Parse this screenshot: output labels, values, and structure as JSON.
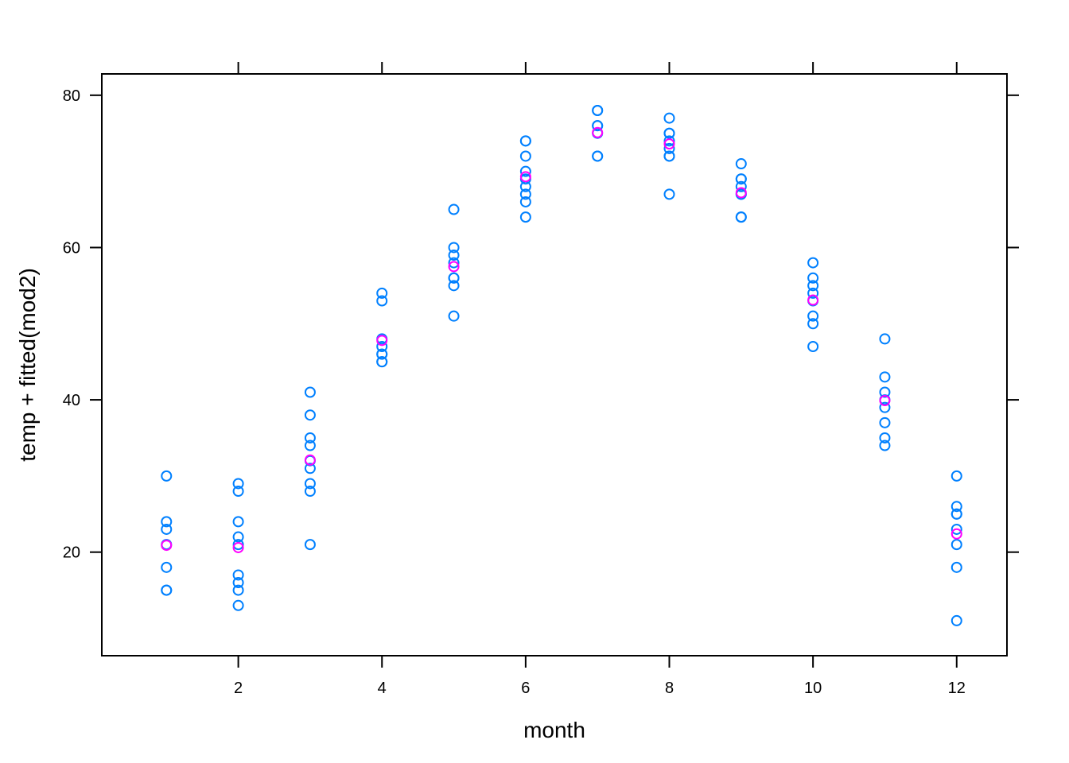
{
  "chart_data": {
    "type": "scatter",
    "title": "",
    "xlabel": "month",
    "ylabel": "temp + fitted(mod2)",
    "xlim": [
      0.1,
      12.7
    ],
    "ylim": [
      6.4,
      82.8
    ],
    "xticks": [
      "2",
      "4",
      "6",
      "8",
      "10",
      "12"
    ],
    "yticks": [
      "20",
      "40",
      "60",
      "80"
    ],
    "grid": false,
    "legend": "none",
    "series": [
      {
        "key": "temp",
        "color": "#0080ff",
        "points": [
          [
            1,
            30
          ],
          [
            1,
            24
          ],
          [
            1,
            23
          ],
          [
            1,
            21
          ],
          [
            1,
            18
          ],
          [
            1,
            15
          ],
          [
            1,
            15
          ],
          [
            2,
            29
          ],
          [
            2,
            28
          ],
          [
            2,
            24
          ],
          [
            2,
            22
          ],
          [
            2,
            21
          ],
          [
            2,
            17
          ],
          [
            2,
            16
          ],
          [
            2,
            15
          ],
          [
            2,
            13
          ],
          [
            3,
            41
          ],
          [
            3,
            38
          ],
          [
            3,
            35
          ],
          [
            3,
            34
          ],
          [
            3,
            32
          ],
          [
            3,
            31
          ],
          [
            3,
            29
          ],
          [
            3,
            28
          ],
          [
            3,
            21
          ],
          [
            4,
            54
          ],
          [
            4,
            53
          ],
          [
            4,
            48
          ],
          [
            4,
            47
          ],
          [
            4,
            46
          ],
          [
            4,
            46
          ],
          [
            4,
            45
          ],
          [
            4,
            45
          ],
          [
            5,
            65
          ],
          [
            5,
            60
          ],
          [
            5,
            59
          ],
          [
            5,
            58
          ],
          [
            5,
            56
          ],
          [
            5,
            56
          ],
          [
            5,
            55
          ],
          [
            5,
            51
          ],
          [
            6,
            74
          ],
          [
            6,
            74
          ],
          [
            6,
            72
          ],
          [
            6,
            70
          ],
          [
            6,
            69
          ],
          [
            6,
            68
          ],
          [
            6,
            67
          ],
          [
            6,
            66
          ],
          [
            6,
            64
          ],
          [
            7,
            78
          ],
          [
            7,
            78
          ],
          [
            7,
            76
          ],
          [
            7,
            76
          ],
          [
            7,
            75
          ],
          [
            7,
            72
          ],
          [
            7,
            72
          ],
          [
            8,
            77
          ],
          [
            8,
            75
          ],
          [
            8,
            75
          ],
          [
            8,
            74
          ],
          [
            8,
            73
          ],
          [
            8,
            72
          ],
          [
            8,
            72
          ],
          [
            8,
            67
          ],
          [
            9,
            71
          ],
          [
            9,
            69
          ],
          [
            9,
            69
          ],
          [
            9,
            68
          ],
          [
            9,
            67
          ],
          [
            9,
            67
          ],
          [
            9,
            64
          ],
          [
            9,
            64
          ],
          [
            10,
            58
          ],
          [
            10,
            56
          ],
          [
            10,
            55
          ],
          [
            10,
            54
          ],
          [
            10,
            53
          ],
          [
            10,
            51
          ],
          [
            10,
            50
          ],
          [
            10,
            47
          ],
          [
            11,
            48
          ],
          [
            11,
            43
          ],
          [
            11,
            41
          ],
          [
            11,
            40
          ],
          [
            11,
            39
          ],
          [
            11,
            37
          ],
          [
            11,
            35
          ],
          [
            11,
            34
          ],
          [
            12,
            30
          ],
          [
            12,
            26
          ],
          [
            12,
            25
          ],
          [
            12,
            25
          ],
          [
            12,
            23
          ],
          [
            12,
            21
          ],
          [
            12,
            18
          ],
          [
            12,
            11
          ]
        ]
      },
      {
        "key": "fitted(mod2)",
        "color": "#ff00ff",
        "points": [
          [
            1,
            20.9
          ],
          [
            2,
            20.6
          ],
          [
            3,
            32.1
          ],
          [
            4,
            47.8
          ],
          [
            5,
            57.5
          ],
          [
            6,
            69.3
          ],
          [
            7,
            75.1
          ],
          [
            8,
            73.6
          ],
          [
            9,
            67.2
          ],
          [
            10,
            53.1
          ],
          [
            11,
            39.9
          ],
          [
            12,
            22.4
          ]
        ]
      }
    ]
  }
}
